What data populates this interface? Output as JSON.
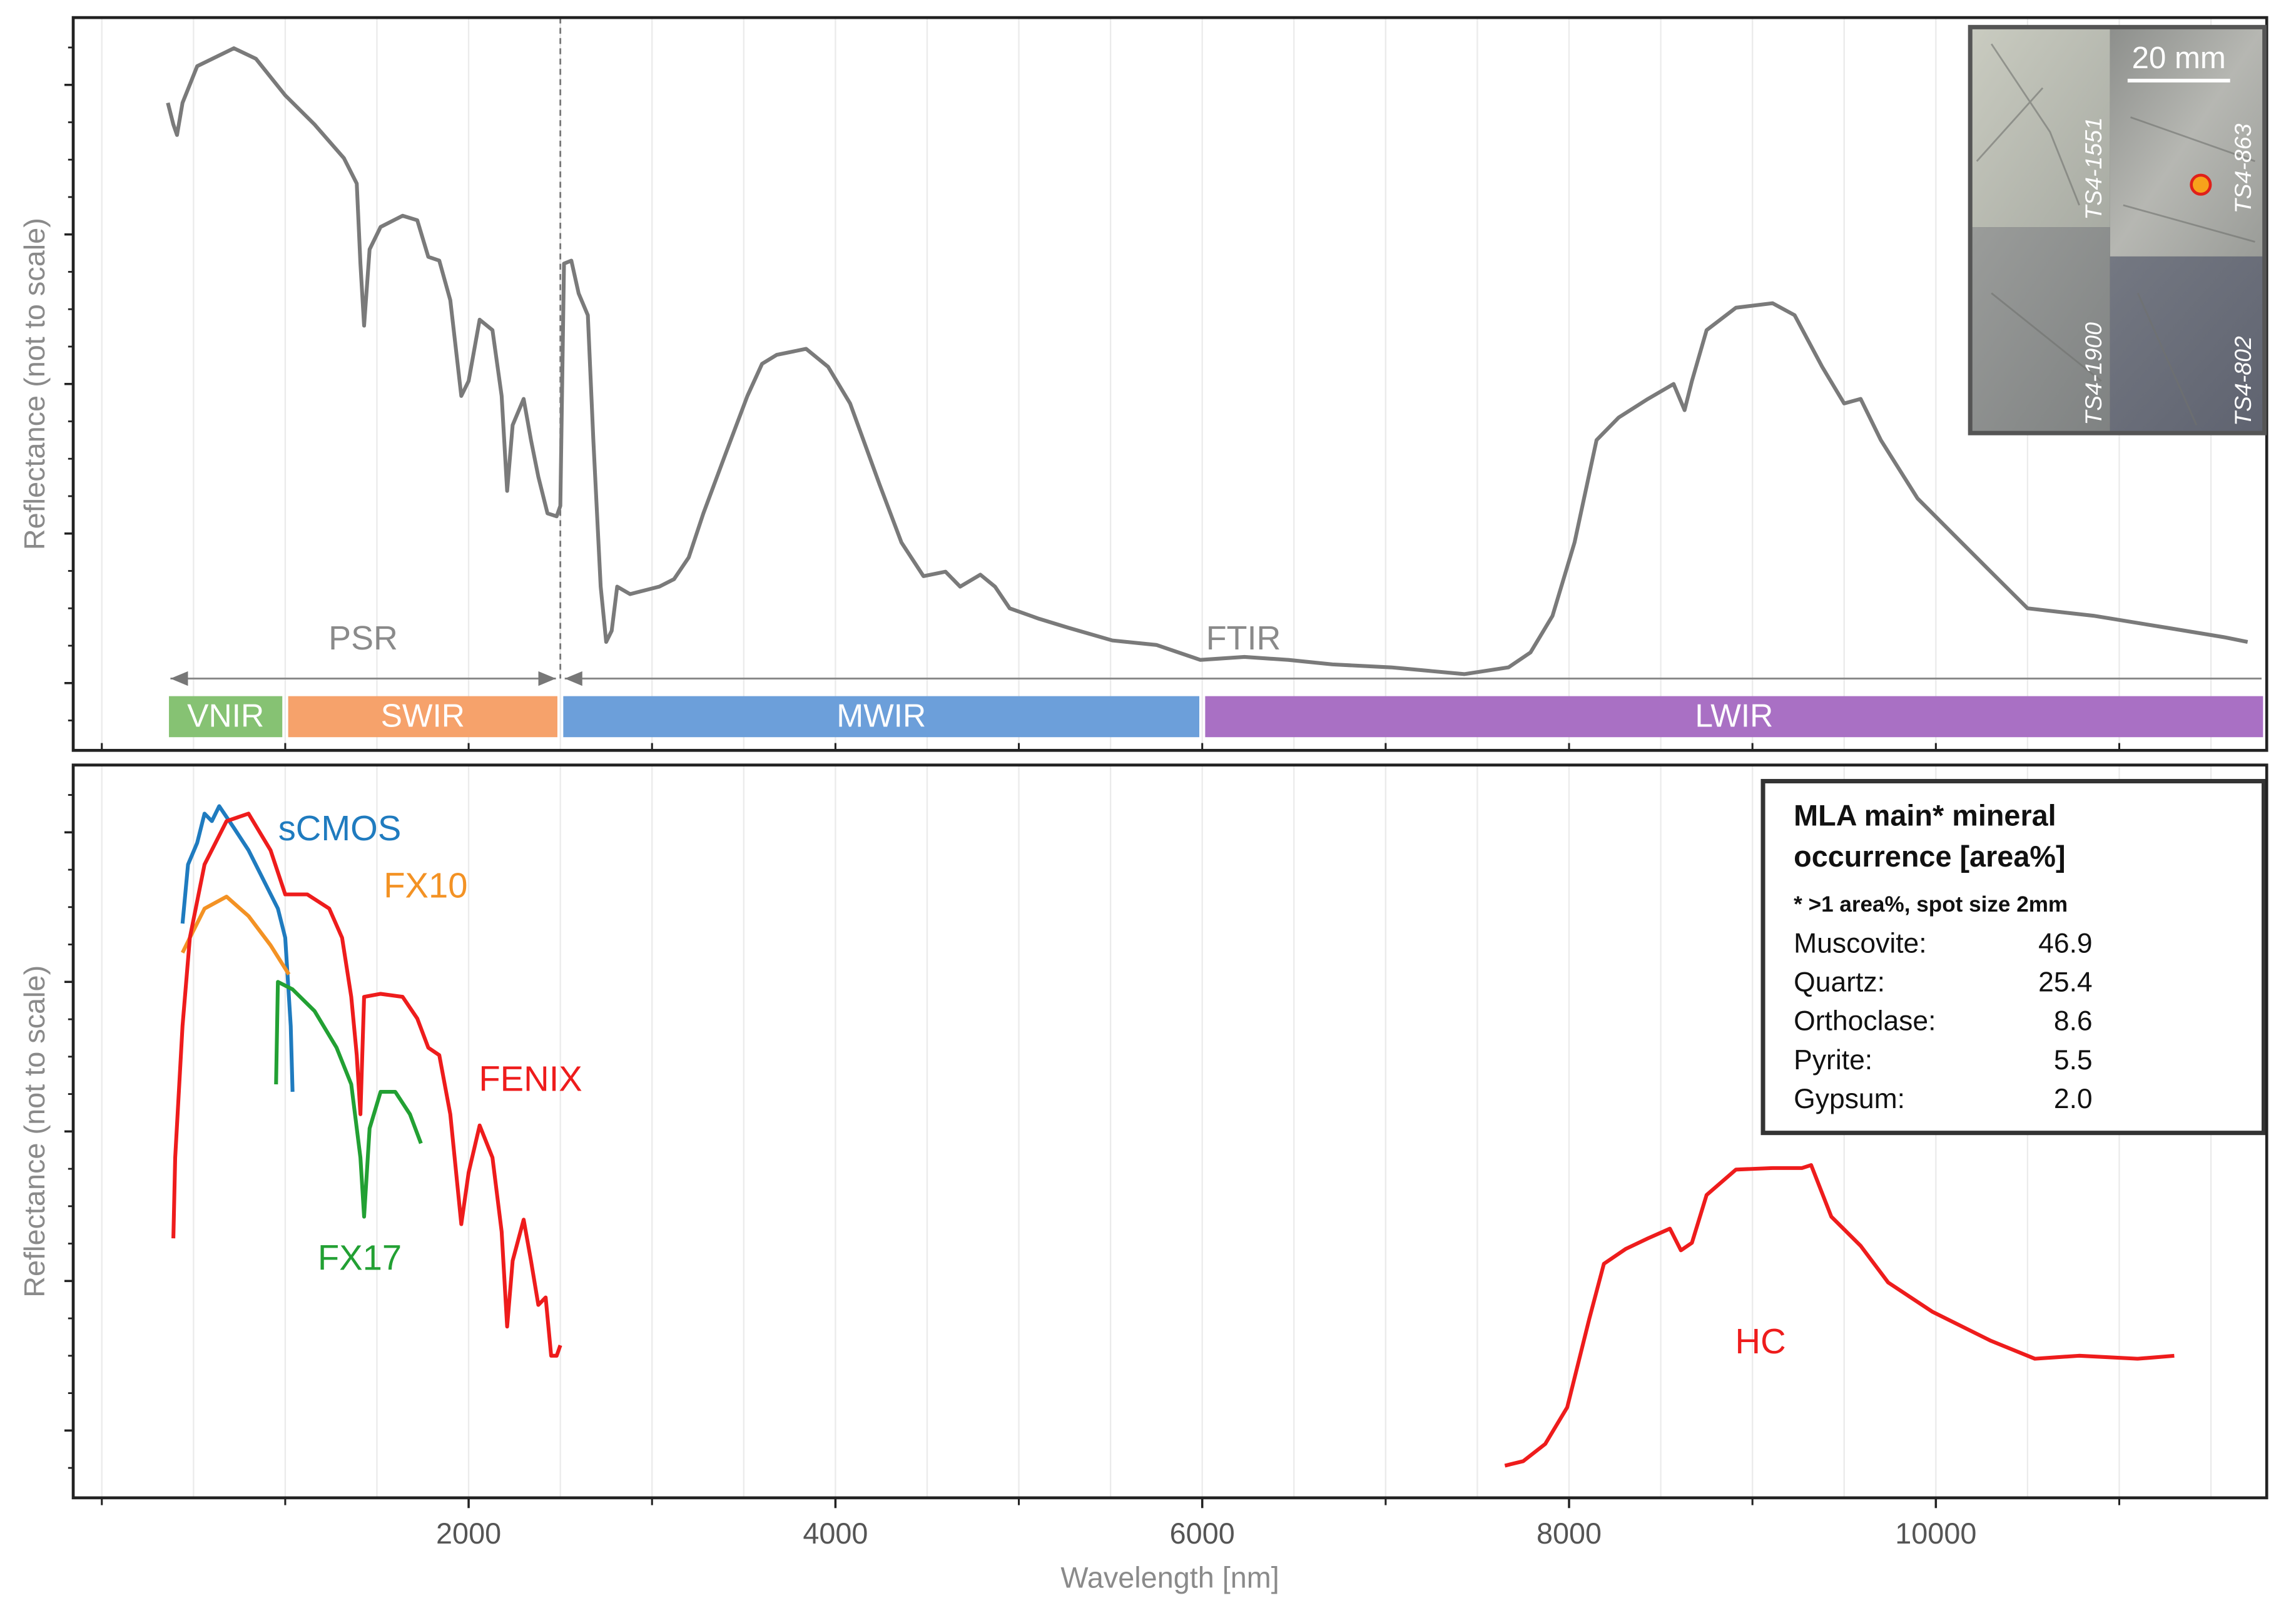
{
  "chart_data": [
    {
      "type": "line",
      "ylabel": "Reflectance (not to scale)",
      "xlim": [
        -156,
        11804
      ],
      "ylim": [
        1,
        99
      ],
      "xgrid": [
        0,
        500,
        1000,
        1500,
        2000,
        2500,
        3000,
        3500,
        4000,
        4500,
        5000,
        5500,
        6000,
        6500,
        7000,
        7500,
        8000,
        8500,
        9000,
        9500,
        10000,
        10500,
        11000,
        11500
      ],
      "yticks": [
        10,
        30,
        50,
        70,
        90
      ],
      "yminor_ticks": [
        5,
        15,
        20,
        25,
        35,
        40,
        45,
        55,
        60,
        65,
        75,
        80,
        85,
        95
      ],
      "grid": true,
      "series": [
        {
          "name": "Reflectance",
          "color": "#7a7a7a",
          "x": [
            360,
            390,
            410,
            440,
            520,
            720,
            840,
            1000,
            1160,
            1320,
            1390,
            1410,
            1430,
            1460,
            1520,
            1640,
            1720,
            1780,
            1840,
            1900,
            1960,
            2000,
            2060,
            2130,
            2180,
            2210,
            2240,
            2300,
            2340,
            2380,
            2430,
            2480,
            2500,
            2520,
            2560,
            2600,
            2650,
            2680,
            2720,
            2750,
            2780,
            2810,
            2880,
            3040,
            3120,
            3200,
            3280,
            3400,
            3520,
            3600,
            3680,
            3840,
            3960,
            4080,
            4240,
            4360,
            4480,
            4600,
            4680,
            4790,
            4870,
            4950,
            5110,
            5270,
            5510,
            5750,
            5990,
            6230,
            6470,
            6710,
            7030,
            7430,
            7670,
            7790,
            7910,
            8030,
            8150,
            8270,
            8430,
            8570,
            8630,
            8670,
            8750,
            8910,
            9110,
            9230,
            9380,
            9500,
            9590,
            9700,
            9900,
            10140,
            10340,
            10500,
            10860,
            11260,
            11580,
            11700
          ],
          "values": [
            87.6,
            84.7,
            83.3,
            87.6,
            92.5,
            94.9,
            93.5,
            88.6,
            84.7,
            80.2,
            76.8,
            66.1,
            57.8,
            68.0,
            71.0,
            72.5,
            71.9,
            67.0,
            66.5,
            61.2,
            48.4,
            50.4,
            58.6,
            57.2,
            48.4,
            35.7,
            44.5,
            48.0,
            42.5,
            37.6,
            32.7,
            32.3,
            33.7,
            66.1,
            66.5,
            62.1,
            59.2,
            42.5,
            22.9,
            15.5,
            17.0,
            22.9,
            21.9,
            22.9,
            23.9,
            26.8,
            32.7,
            40.6,
            48.4,
            52.7,
            53.9,
            54.7,
            52.3,
            47.4,
            36.6,
            28.8,
            24.3,
            24.9,
            22.9,
            24.5,
            22.9,
            20.0,
            18.6,
            17.4,
            15.7,
            15.1,
            13.1,
            13.5,
            13.1,
            12.5,
            12.1,
            11.2,
            12.1,
            14.1,
            19.0,
            28.8,
            42.5,
            45.5,
            48.0,
            50.0,
            46.5,
            50.4,
            57.2,
            60.2,
            60.8,
            59.2,
            52.3,
            47.4,
            48.0,
            42.5,
            34.7,
            28.8,
            23.9,
            20.0,
            19.0,
            17.4,
            16.1,
            15.5
          ]
        }
      ],
      "divider": 2500,
      "ranges": [
        {
          "label": "PSR",
          "start": 350,
          "end": 2500
        },
        {
          "label": "FTIR",
          "start": 2500,
          "end": 11800
        }
      ],
      "bands": [
        {
          "label": "VNIR",
          "start": 350,
          "end": 1000,
          "color": "#86c273"
        },
        {
          "label": "SWIR",
          "start": 1000,
          "end": 2500,
          "color": "#f6a26b"
        },
        {
          "label": "MWIR",
          "start": 2500,
          "end": 6000,
          "color": "#6c9fda"
        },
        {
          "label": "LWIR",
          "start": 6000,
          "end": 11800,
          "color": "#a970c4"
        }
      ],
      "inset": {
        "scale_bar": "20 mm",
        "samples": [
          "TS4-1551",
          "TS4-863",
          "TS4-1900",
          "TS4-802"
        ]
      }
    },
    {
      "type": "line",
      "ylabel": "Reflectance (not to scale)",
      "xlabel": "Wavelength [nm]",
      "xlim": [
        -156,
        11804
      ],
      "ylim": [
        1,
        99
      ],
      "xticks": [
        2000,
        4000,
        6000,
        8000,
        10000
      ],
      "xminor_ticks": [
        0,
        1000,
        3000,
        5000,
        7000,
        9000,
        11000
      ],
      "xgrid": [
        0,
        500,
        1000,
        1500,
        2000,
        2500,
        3000,
        3500,
        4000,
        4500,
        5000,
        5500,
        6000,
        6500,
        7000,
        7500,
        8000,
        8500,
        9000,
        9500,
        10000,
        10500,
        11000,
        11500
      ],
      "yticks": [
        10,
        30,
        50,
        70,
        90
      ],
      "yminor_ticks": [
        5,
        15,
        20,
        25,
        35,
        40,
        45,
        55,
        60,
        65,
        75,
        80,
        85,
        95
      ],
      "grid": true,
      "series": [
        {
          "name": "sCMOS",
          "color": "#1f7bbf",
          "x": [
            440,
            470,
            520,
            560,
            600,
            640,
            720,
            800,
            880,
            960,
            1000,
            1030,
            1040
          ],
          "values": [
            77.8,
            85.7,
            88.6,
            92.5,
            91.5,
            93.5,
            90.6,
            87.6,
            83.7,
            79.8,
            75.9,
            64.1,
            55.3
          ]
        },
        {
          "name": "FX10",
          "color": "#f39224",
          "x": [
            440,
            480,
            560,
            680,
            800,
            920,
            1020
          ],
          "values": [
            73.9,
            75.9,
            79.8,
            81.4,
            78.8,
            74.9,
            71.0
          ]
        },
        {
          "name": "FX17",
          "color": "#22a033",
          "x": [
            950,
            960,
            1040,
            1160,
            1280,
            1360,
            1410,
            1430,
            1460,
            1520,
            1600,
            1680,
            1740
          ],
          "values": [
            56.3,
            70.0,
            69.0,
            66.1,
            61.2,
            56.3,
            46.5,
            38.6,
            50.4,
            55.3,
            55.3,
            52.3,
            48.4
          ]
        },
        {
          "name": "FENIX",
          "color": "#ee1c1c",
          "x": [
            390,
            400,
            440,
            480,
            560,
            680,
            800,
            920,
            1000,
            1120,
            1240,
            1310,
            1360,
            1390,
            1410,
            1430,
            1520,
            1640,
            1720,
            1780,
            1840,
            1900,
            1960,
            2000,
            2060,
            2130,
            2180,
            2210,
            2240,
            2300,
            2340,
            2380,
            2420,
            2450,
            2480,
            2500
          ],
          "values": [
            35.7,
            46.5,
            64.1,
            75.9,
            85.7,
            91.5,
            92.5,
            87.6,
            81.7,
            81.7,
            79.8,
            75.9,
            68.0,
            60.2,
            52.3,
            68.0,
            68.4,
            68.0,
            65.1,
            61.2,
            60.2,
            52.3,
            37.6,
            44.5,
            50.8,
            46.5,
            36.6,
            23.9,
            32.7,
            38.2,
            32.7,
            26.8,
            27.8,
            20.0,
            20.0,
            21.4
          ]
        },
        {
          "name": "HC",
          "color": "#ee1c1c",
          "x": [
            7650,
            7750,
            7870,
            7990,
            8110,
            8190,
            8310,
            8430,
            8550,
            8610,
            8670,
            8750,
            8910,
            9110,
            9270,
            9320,
            9430,
            9590,
            9740,
            9980,
            10300,
            10540,
            10780,
            11100,
            11300
          ],
          "values": [
            5.3,
            5.9,
            8.2,
            13.1,
            24.9,
            32.3,
            34.3,
            35.7,
            37.0,
            34.1,
            35.1,
            41.5,
            44.9,
            45.1,
            45.1,
            45.5,
            38.6,
            34.7,
            29.8,
            25.9,
            22.0,
            19.6,
            20.0,
            19.6,
            20.0
          ]
        }
      ],
      "box": {
        "title": [
          "MLA main* mineral",
          "occurrence [area%]"
        ],
        "subtitle": "* >1 area%, spot size 2mm",
        "rows": [
          {
            "name": "Muscovite:",
            "value": "46.9"
          },
          {
            "name": "Quartz:",
            "value": "25.4"
          },
          {
            "name": "Orthoclase:",
            "value": "8.6"
          },
          {
            "name": "Pyrite:",
            "value": "5.5"
          },
          {
            "name": "Gypsum:",
            "value": "2.0"
          }
        ]
      }
    }
  ]
}
